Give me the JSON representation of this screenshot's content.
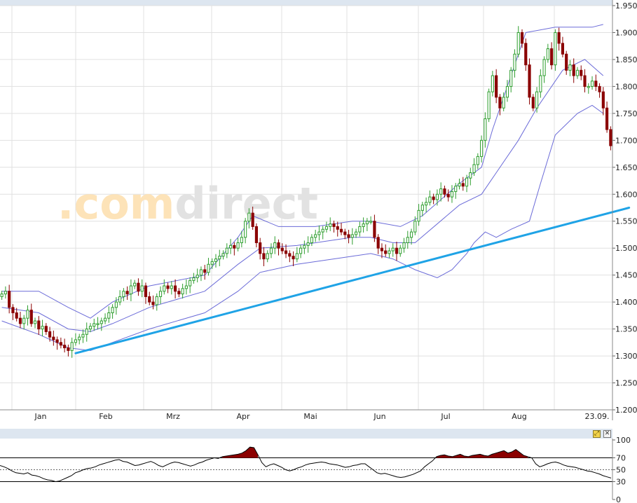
{
  "watermark": {
    "text_pre": ".com",
    "text_post": "direct"
  },
  "chart_data": [
    {
      "type": "candlestick",
      "title": "",
      "xlabel": "",
      "ylabel": "",
      "ylim": [
        1.2,
        1.95
      ],
      "y_ticks": [
        "1.950",
        "1.900",
        "1.850",
        "1.800",
        "1.750",
        "1.700",
        "1.650",
        "1.600",
        "1.550",
        "1.500",
        "1.450",
        "1.400",
        "1.350",
        "1.300",
        "1.250",
        "1.200"
      ],
      "x_ticks": [
        "Jan",
        "Feb",
        "Mrz",
        "Apr",
        "Mai",
        "Jun",
        "Jul",
        "Aug",
        "23.09."
      ],
      "colors": {
        "up": "#2e9e2e",
        "down": "#8b0000",
        "bands": "#6b6bd8",
        "trendline": "#1fa3e6",
        "grid": "#e0e0e0"
      },
      "close": [
        1.415,
        1.42,
        1.39,
        1.38,
        1.37,
        1.36,
        1.37,
        1.385,
        1.36,
        1.365,
        1.35,
        1.355,
        1.345,
        1.335,
        1.33,
        1.325,
        1.32,
        1.315,
        1.31,
        1.325,
        1.33,
        1.335,
        1.34,
        1.35,
        1.355,
        1.36,
        1.36,
        1.365,
        1.37,
        1.38,
        1.39,
        1.4,
        1.41,
        1.42,
        1.415,
        1.43,
        1.435,
        1.42,
        1.43,
        1.41,
        1.4,
        1.395,
        1.41,
        1.42,
        1.43,
        1.425,
        1.43,
        1.42,
        1.415,
        1.425,
        1.43,
        1.44,
        1.445,
        1.45,
        1.46,
        1.455,
        1.47,
        1.475,
        1.48,
        1.485,
        1.49,
        1.5,
        1.505,
        1.5,
        1.51,
        1.52,
        1.55,
        1.565,
        1.54,
        1.51,
        1.49,
        1.48,
        1.49,
        1.5,
        1.51,
        1.5,
        1.495,
        1.49,
        1.485,
        1.48,
        1.49,
        1.5,
        1.505,
        1.51,
        1.52,
        1.525,
        1.53,
        1.535,
        1.54,
        1.545,
        1.54,
        1.535,
        1.53,
        1.525,
        1.52,
        1.525,
        1.53,
        1.54,
        1.545,
        1.55,
        1.55,
        1.52,
        1.5,
        1.495,
        1.49,
        1.495,
        1.5,
        1.49,
        1.5,
        1.51,
        1.52,
        1.53,
        1.55,
        1.57,
        1.58,
        1.585,
        1.595,
        1.59,
        1.6,
        1.61,
        1.6,
        1.595,
        1.605,
        1.615,
        1.62,
        1.615,
        1.63,
        1.64,
        1.655,
        1.67,
        1.7,
        1.74,
        1.79,
        1.82,
        1.78,
        1.76,
        1.78,
        1.8,
        1.83,
        1.86,
        1.9,
        1.88,
        1.84,
        1.78,
        1.76,
        1.79,
        1.82,
        1.85,
        1.87,
        1.84,
        1.9,
        1.88,
        1.86,
        1.83,
        1.84,
        1.82,
        1.83,
        1.82,
        1.8,
        1.8,
        1.81,
        1.8,
        1.79,
        1.76,
        1.72,
        1.69
      ],
      "bands": {
        "upper": [
          [
            0,
            1.42
          ],
          [
            10,
            1.42
          ],
          [
            18,
            1.39
          ],
          [
            24,
            1.37
          ],
          [
            30,
            1.4
          ],
          [
            40,
            1.43
          ],
          [
            55,
            1.45
          ],
          [
            64,
            1.52
          ],
          [
            68,
            1.56
          ],
          [
            75,
            1.54
          ],
          [
            85,
            1.54
          ],
          [
            95,
            1.55
          ],
          [
            100,
            1.55
          ],
          [
            108,
            1.54
          ],
          [
            114,
            1.56
          ],
          [
            124,
            1.62
          ],
          [
            130,
            1.65
          ],
          [
            133,
            1.72
          ],
          [
            138,
            1.82
          ],
          [
            142,
            1.9
          ],
          [
            150,
            1.91
          ],
          [
            160,
            1.91
          ],
          [
            163,
            1.915
          ]
        ],
        "middle": [
          [
            0,
            1.39
          ],
          [
            10,
            1.38
          ],
          [
            18,
            1.35
          ],
          [
            24,
            1.345
          ],
          [
            30,
            1.36
          ],
          [
            40,
            1.39
          ],
          [
            55,
            1.42
          ],
          [
            64,
            1.47
          ],
          [
            70,
            1.5
          ],
          [
            80,
            1.505
          ],
          [
            95,
            1.52
          ],
          [
            100,
            1.52
          ],
          [
            106,
            1.51
          ],
          [
            112,
            1.51
          ],
          [
            124,
            1.58
          ],
          [
            130,
            1.6
          ],
          [
            134,
            1.64
          ],
          [
            140,
            1.7
          ],
          [
            145,
            1.76
          ],
          [
            152,
            1.83
          ],
          [
            158,
            1.85
          ],
          [
            163,
            1.82
          ]
        ],
        "lower": [
          [
            0,
            1.365
          ],
          [
            10,
            1.34
          ],
          [
            18,
            1.315
          ],
          [
            24,
            1.31
          ],
          [
            30,
            1.325
          ],
          [
            40,
            1.35
          ],
          [
            55,
            1.38
          ],
          [
            64,
            1.42
          ],
          [
            70,
            1.455
          ],
          [
            80,
            1.47
          ],
          [
            95,
            1.485
          ],
          [
            100,
            1.49
          ],
          [
            106,
            1.48
          ],
          [
            112,
            1.46
          ],
          [
            118,
            1.445
          ],
          [
            122,
            1.46
          ],
          [
            126,
            1.49
          ],
          [
            128,
            1.51
          ],
          [
            131,
            1.53
          ],
          [
            134,
            1.52
          ],
          [
            138,
            1.535
          ],
          [
            143,
            1.55
          ],
          [
            146,
            1.62
          ],
          [
            150,
            1.71
          ],
          [
            156,
            1.75
          ],
          [
            160,
            1.765
          ],
          [
            163,
            1.75
          ]
        ]
      },
      "trendline": {
        "from": [
          20,
          1.305
        ],
        "to": [
          170,
          1.575
        ]
      }
    },
    {
      "type": "line",
      "title": "",
      "xlabel": "",
      "ylabel": "",
      "ylim": [
        0,
        100
      ],
      "y_ticks": [
        "100",
        "70",
        "50",
        "30",
        "0"
      ],
      "levels": [
        70,
        50,
        30
      ],
      "colors": {
        "line": "#000000",
        "overbought_fill": "#8b0000"
      },
      "values": [
        57,
        55,
        52,
        48,
        45,
        44,
        43,
        45,
        41,
        40,
        38,
        35,
        33,
        32,
        30,
        31,
        34,
        37,
        40,
        45,
        47,
        50,
        52,
        53,
        55,
        58,
        60,
        62,
        64,
        66,
        67,
        64,
        63,
        60,
        57,
        58,
        60,
        62,
        64,
        61,
        57,
        55,
        58,
        61,
        63,
        62,
        60,
        58,
        56,
        58,
        61,
        63,
        66,
        68,
        70,
        69,
        72,
        73,
        74,
        75,
        76,
        78,
        82,
        88,
        87,
        75,
        62,
        55,
        58,
        60,
        57,
        54,
        50,
        48,
        50,
        53,
        55,
        58,
        60,
        61,
        62,
        63,
        62,
        60,
        59,
        58,
        56,
        54,
        55,
        57,
        58,
        60,
        60,
        55,
        50,
        45,
        43,
        44,
        42,
        40,
        38,
        37,
        38,
        40,
        42,
        45,
        48,
        55,
        60,
        65,
        72,
        74,
        75,
        73,
        72,
        74,
        76,
        73,
        72,
        74,
        75,
        76,
        74,
        73,
        76,
        78,
        80,
        82,
        78,
        80,
        84,
        79,
        74,
        72,
        70,
        60,
        55,
        57,
        60,
        62,
        63,
        61,
        58,
        56,
        55,
        54,
        52,
        50,
        48,
        47,
        45,
        43,
        40,
        38,
        36
      ]
    }
  ]
}
